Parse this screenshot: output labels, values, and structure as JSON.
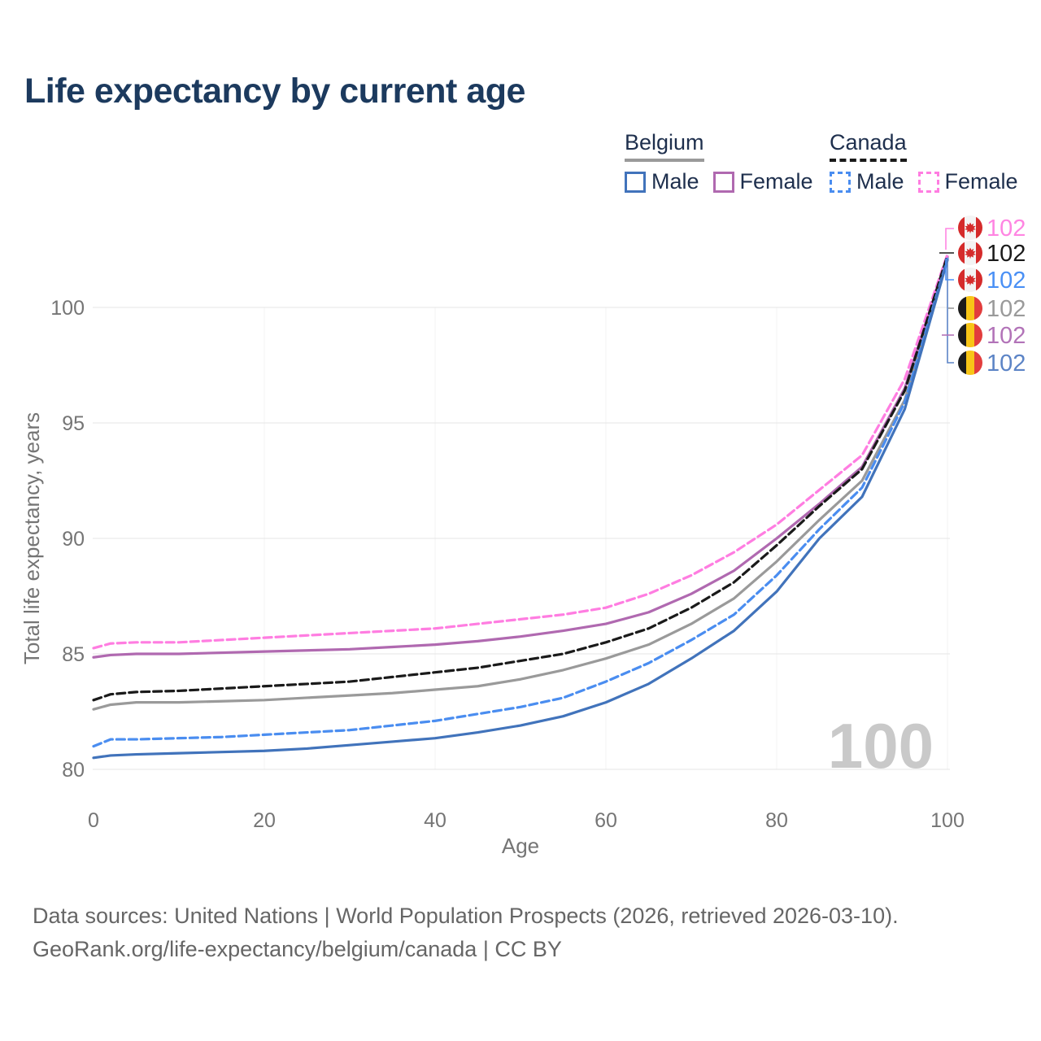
{
  "title": "Life expectancy by current age",
  "colors": {
    "title": "#1c3a5e",
    "legend_text": "#1e2f4d",
    "axis_text": "#757575",
    "grid": "#e9e9e9",
    "grid_vertical": "#f3f3f3",
    "watermark": "#c9c9c9",
    "footer_text": "#666666"
  },
  "legend": {
    "groups": [
      {
        "name": "Belgium",
        "line_style": "solid",
        "line_color": "#9a9a9a",
        "items": [
          {
            "label": "Male",
            "box_color": "#4173bb",
            "box_style": "solid"
          },
          {
            "label": "Female",
            "box_color": "#b069b0",
            "box_style": "solid"
          }
        ]
      },
      {
        "name": "Canada",
        "line_style": "dashed",
        "line_color": "#1a1a1a",
        "items": [
          {
            "label": "Male",
            "box_color": "#4a8df0",
            "box_style": "dashed"
          },
          {
            "label": "Female",
            "box_color": "#ff7de1",
            "box_style": "dashed"
          }
        ]
      }
    ]
  },
  "chart_data": {
    "type": "line",
    "title": "Life expectancy by current age",
    "xlabel": "Age",
    "ylabel": "Total life expectancy, years",
    "x_ticks": [
      0,
      20,
      40,
      60,
      80,
      100
    ],
    "y_ticks": [
      80,
      85,
      90,
      95,
      100
    ],
    "xlim": [
      0,
      100
    ],
    "ylim": [
      78.8,
      103
    ],
    "grid": true,
    "watermark": "100",
    "x": [
      0,
      2,
      5,
      10,
      15,
      20,
      25,
      30,
      35,
      40,
      45,
      50,
      55,
      60,
      65,
      70,
      75,
      80,
      85,
      90,
      95,
      100
    ],
    "series": [
      {
        "id": "belgium-total",
        "name": "Belgium",
        "country": "Belgium",
        "sex": "Both",
        "color": "#9a9a9a",
        "dashed": false,
        "values": [
          82.6,
          82.8,
          82.9,
          82.9,
          82.95,
          83.0,
          83.1,
          83.2,
          83.3,
          83.45,
          83.6,
          83.9,
          84.3,
          84.8,
          85.4,
          86.3,
          87.4,
          89.0,
          90.8,
          92.5,
          96.0,
          102.15
        ]
      },
      {
        "id": "belgium-female",
        "name": "Belgium Female",
        "country": "Belgium",
        "sex": "Female",
        "color": "#b069b0",
        "dashed": false,
        "values": [
          84.85,
          84.95,
          85.0,
          85.0,
          85.05,
          85.1,
          85.15,
          85.2,
          85.3,
          85.4,
          85.55,
          85.75,
          86.0,
          86.3,
          86.8,
          87.6,
          88.6,
          90.0,
          91.5,
          93.1,
          96.5,
          102.2
        ]
      },
      {
        "id": "canada-female",
        "name": "Canada Female",
        "country": "Canada",
        "sex": "Female",
        "color": "#ff7de1",
        "dashed": true,
        "values": [
          85.25,
          85.45,
          85.5,
          85.5,
          85.6,
          85.7,
          85.8,
          85.9,
          86.0,
          86.1,
          86.3,
          86.5,
          86.7,
          87.0,
          87.6,
          88.4,
          89.4,
          90.6,
          92.1,
          93.6,
          96.9,
          102.3
        ]
      },
      {
        "id": "canada-total",
        "name": "Canada",
        "country": "Canada",
        "sex": "Both",
        "color": "#1a1a1a",
        "dashed": true,
        "values": [
          83.0,
          83.25,
          83.35,
          83.4,
          83.5,
          83.6,
          83.7,
          83.8,
          84.0,
          84.2,
          84.4,
          84.7,
          85.0,
          85.5,
          86.1,
          87.0,
          88.1,
          89.7,
          91.4,
          93.0,
          96.4,
          102.25
        ]
      },
      {
        "id": "canada-male",
        "name": "Canada Male",
        "country": "Canada",
        "sex": "Male",
        "color": "#4a8df0",
        "dashed": true,
        "values": [
          81.0,
          81.3,
          81.3,
          81.35,
          81.4,
          81.5,
          81.6,
          81.7,
          81.9,
          82.1,
          82.4,
          82.7,
          83.1,
          83.8,
          84.6,
          85.6,
          86.7,
          88.4,
          90.4,
          92.2,
          95.9,
          102.1
        ]
      },
      {
        "id": "belgium-male",
        "name": "Belgium Male",
        "country": "Belgium",
        "sex": "Male",
        "color": "#4173bb",
        "dashed": false,
        "values": [
          80.5,
          80.6,
          80.65,
          80.7,
          80.75,
          80.8,
          80.9,
          81.05,
          81.2,
          81.35,
          81.6,
          81.9,
          82.3,
          82.9,
          83.7,
          84.8,
          86.0,
          87.7,
          90.0,
          91.8,
          95.6,
          102.05
        ]
      }
    ],
    "end_labels": [
      {
        "flag": "canada",
        "value": "102",
        "color": "#ff85e2"
      },
      {
        "flag": "canada",
        "value": "102",
        "color": "#1a1a1a"
      },
      {
        "flag": "canada",
        "value": "102",
        "color": "#4a90f5"
      },
      {
        "flag": "belgium",
        "value": "102",
        "color": "#9a9a9a"
      },
      {
        "flag": "belgium",
        "value": "102",
        "color": "#b273b8"
      },
      {
        "flag": "belgium",
        "value": "102",
        "color": "#5c84c6"
      }
    ]
  },
  "footer": {
    "line1": "Data sources: United Nations | World Population Prospects (2026, retrieved 2026-03-10).",
    "line2": "GeoRank.org/life-expectancy/belgium/canada | CC BY"
  }
}
